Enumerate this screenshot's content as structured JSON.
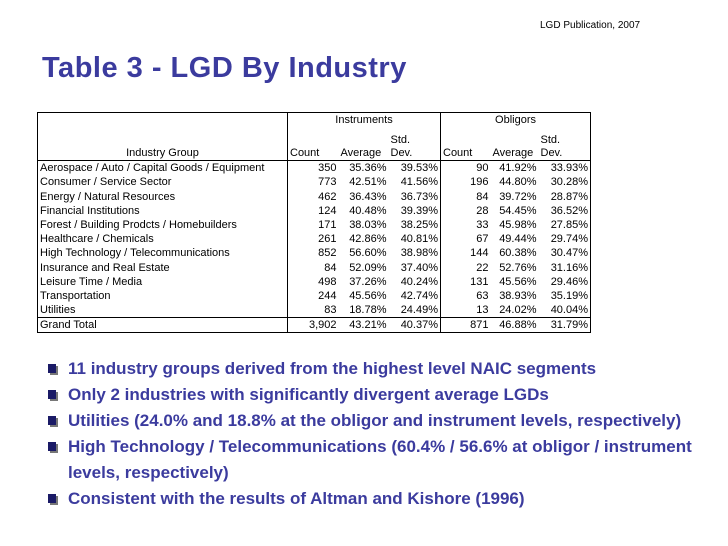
{
  "header": {
    "publication": "LGD Publication, 2007",
    "title": "Table 3 - LGD By Industry"
  },
  "table": {
    "groups": [
      "Instruments",
      "Obligors"
    ],
    "columns": [
      "Industry Group",
      "Count",
      "Average",
      "Std.\nDev.",
      "Count",
      "Average",
      "Std.\nDev."
    ],
    "rows": [
      [
        "Aerospace / Auto / Capital Goods / Equipment",
        "350",
        "35.36%",
        "39.53%",
        "90",
        "41.92%",
        "33.93%"
      ],
      [
        "Consumer / Service Sector",
        "773",
        "42.51%",
        "41.56%",
        "196",
        "44.80%",
        "30.28%"
      ],
      [
        "Energy / Natural Resources",
        "462",
        "36.43%",
        "36.73%",
        "84",
        "39.72%",
        "28.87%"
      ],
      [
        "Financial Institutions",
        "124",
        "40.48%",
        "39.39%",
        "28",
        "54.45%",
        "36.52%"
      ],
      [
        "Forest / Building Prodcts / Homebuilders",
        "171",
        "38.03%",
        "38.25%",
        "33",
        "45.98%",
        "27.85%"
      ],
      [
        "Healthcare / Chemicals",
        "261",
        "42.86%",
        "40.81%",
        "67",
        "49.44%",
        "29.74%"
      ],
      [
        "High Technology / Telecommunications",
        "852",
        "56.60%",
        "38.98%",
        "144",
        "60.38%",
        "30.47%"
      ],
      [
        "Insurance and Real Estate",
        "84",
        "52.09%",
        "37.40%",
        "22",
        "52.76%",
        "31.16%"
      ],
      [
        "Leisure Time / Media",
        "498",
        "37.26%",
        "40.24%",
        "131",
        "45.56%",
        "29.46%"
      ],
      [
        "Transportation",
        "244",
        "45.56%",
        "42.74%",
        "63",
        "38.93%",
        "35.19%"
      ],
      [
        "Utilities",
        "83",
        "18.78%",
        "24.49%",
        "13",
        "24.02%",
        "40.04%"
      ],
      [
        "Grand Total",
        "3,902",
        "43.21%",
        "40.37%",
        "871",
        "46.88%",
        "31.79%"
      ]
    ]
  },
  "bullets": [
    "11 industry groups derived from the highest level NAIC segments",
    "Only 2 industries with significantly divergent average LGDs",
    "Utilities (24.0% and 18.8% at the obligor and instrument levels, respectively)",
    "High Technology / Telecommunications (60.4% / 56.6% at obligor / instrument levels, respectively)",
    "Consistent with the results of Altman and Kishore (1996)"
  ]
}
